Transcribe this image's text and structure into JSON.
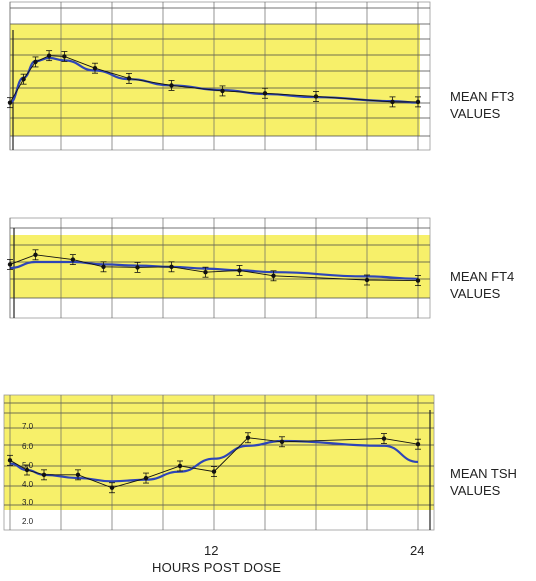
{
  "chart_data": [
    {
      "type": "line",
      "panel_label_1": "MEAN FT3",
      "panel_label_2": "VALUES",
      "series": [
        {
          "name": "",
          "x": [
            0,
            0.8,
            1.5,
            2.3,
            3.2,
            5,
            7,
            9.5,
            12.5,
            15,
            18,
            22.5,
            24
          ],
          "y": [
            2.0,
            3.5,
            4.6,
            5.0,
            4.95,
            4.2,
            3.55,
            3.1,
            2.75,
            2.6,
            2.4,
            2.05,
            2.05
          ]
        }
      ],
      "fit_y": [
        2.0,
        3.6,
        4.65,
        4.85,
        4.7,
        4.05,
        3.5,
        3.1,
        2.8,
        2.55,
        2.35,
        2.1,
        2.0
      ],
      "ylim": [
        0,
        6
      ]
    },
    {
      "type": "line",
      "panel_label_1": "MEAN FT4",
      "panel_label_2": "VALUES",
      "series": [
        {
          "name": "",
          "x": [
            0,
            1.5,
            3.7,
            5.5,
            7.5,
            9.5,
            11.5,
            13.5,
            15.5,
            21,
            24
          ],
          "y": [
            2.8,
            3.6,
            3.2,
            2.6,
            2.55,
            2.6,
            2.15,
            2.3,
            1.85,
            1.5,
            1.45
          ]
        }
      ],
      "fit_y": [
        2.5,
        3.0,
        3.0,
        2.8,
        2.7,
        2.6,
        2.45,
        2.3,
        2.15,
        1.8,
        1.6
      ],
      "ylim": [
        0,
        5
      ]
    },
    {
      "type": "line",
      "panel_label_1": "MEAN TSH",
      "panel_label_2": "VALUES",
      "ytick_labels": [
        "7.0",
        "6.0",
        "5.0",
        "4.0",
        "3.0",
        "2.0"
      ],
      "xtick_labels": [
        "12",
        "24"
      ],
      "xlabel": "HOURS POST DOSE",
      "series": [
        {
          "name": "",
          "x": [
            0,
            1,
            2,
            4,
            6,
            8,
            10,
            12,
            14,
            16,
            22,
            24
          ],
          "y": [
            5.2,
            4.6,
            4.3,
            4.3,
            3.5,
            4.1,
            4.85,
            4.5,
            6.6,
            6.35,
            6.55,
            6.2
          ]
        }
      ],
      "fit_y": [
        5.0,
        4.6,
        4.3,
        4.1,
        3.9,
        4.0,
        4.5,
        5.3,
        6.1,
        6.4,
        6.1,
        5.1
      ],
      "ylim": [
        1.5,
        7.7
      ],
      "xlim": [
        0,
        24
      ]
    }
  ]
}
